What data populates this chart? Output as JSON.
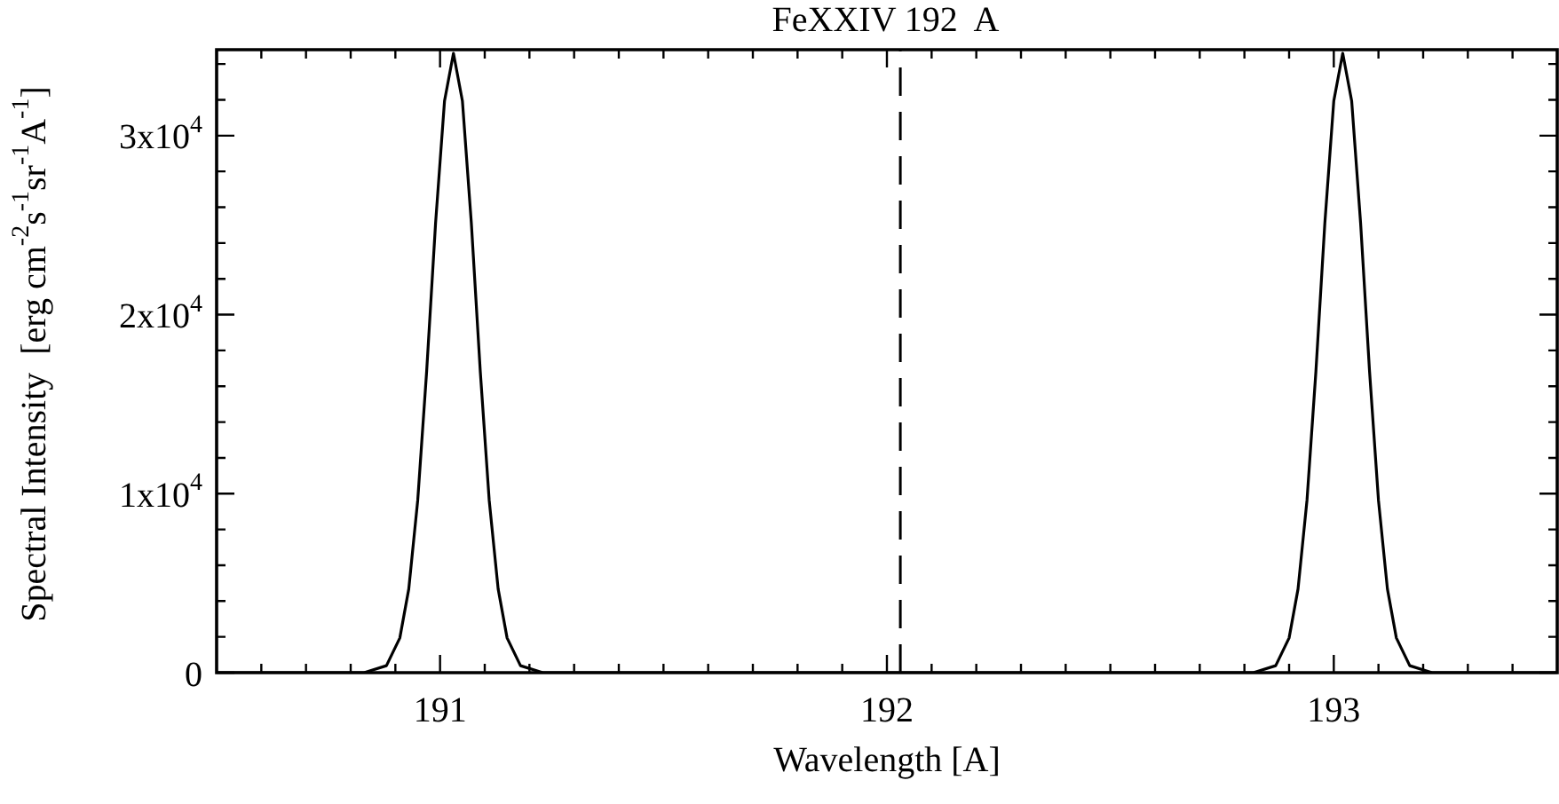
{
  "chart_data": {
    "type": "line",
    "title": "FeXXIV 192  A",
    "xlabel": "Wavelength [A]",
    "ylabel": "Spectral Intensity  [erg cm$^{-2}$s$^{-1}$sr$^{-1}$A$^{-1}$]",
    "x": [
      190.5,
      190.83,
      190.88,
      190.91,
      190.93,
      190.95,
      190.97,
      190.99,
      191.01,
      191.03,
      191.05,
      191.07,
      191.09,
      191.11,
      191.13,
      191.15,
      191.18,
      191.23,
      192.82,
      192.87,
      192.9,
      192.92,
      192.94,
      192.96,
      192.98,
      193.0,
      193.02,
      193.04,
      193.06,
      193.08,
      193.1,
      193.12,
      193.14,
      193.17,
      193.22,
      193.5
    ],
    "series": [
      {
        "color": "#000000",
        "values": [
          0,
          0,
          390,
          1940,
          4680,
          9620,
          16840,
          25120,
          31940,
          34600,
          31940,
          25120,
          16840,
          9620,
          4680,
          1940,
          390,
          0,
          0,
          390,
          1940,
          4680,
          9620,
          16840,
          25120,
          31940,
          34600,
          31940,
          25120,
          16840,
          9620,
          4680,
          1940,
          390,
          0,
          0
        ]
      }
    ],
    "xlim": [
      190.5,
      193.5
    ],
    "xticks": [
      {
        "value": 190.6,
        "label": null
      },
      {
        "value": 190.7,
        "label": null
      },
      {
        "value": 190.8,
        "label": null
      },
      {
        "value": 190.9,
        "label": null
      },
      191,
      {
        "value": 191.1,
        "label": null
      },
      {
        "value": 191.2,
        "label": null
      },
      {
        "value": 191.3,
        "label": null
      },
      {
        "value": 191.4,
        "label": null
      },
      {
        "value": 191.5,
        "label": null
      },
      {
        "value": 191.6,
        "label": null
      },
      {
        "value": 191.7,
        "label": null
      },
      {
        "value": 191.8,
        "label": null
      },
      {
        "value": 191.9,
        "label": null
      },
      192,
      {
        "value": 192.1,
        "label": null
      },
      {
        "value": 192.2,
        "label": null
      },
      {
        "value": 192.3,
        "label": null
      },
      {
        "value": 192.4,
        "label": null
      },
      {
        "value": 192.5,
        "label": null
      },
      {
        "value": 192.6,
        "label": null
      },
      {
        "value": 192.7,
        "label": null
      },
      {
        "value": 192.8,
        "label": null
      },
      {
        "value": 192.9,
        "label": null
      },
      193,
      {
        "value": 193.1,
        "label": null
      },
      {
        "value": 193.2,
        "label": null
      },
      {
        "value": 193.3,
        "label": null
      },
      {
        "value": 193.4,
        "label": null
      }
    ],
    "ylim": [
      0,
      34800
    ],
    "yticks": [
      0,
      {
        "value": 2000,
        "label": null
      },
      {
        "value": 4000,
        "label": null
      },
      {
        "value": 6000,
        "label": null
      },
      {
        "value": 8000,
        "label": null
      },
      {
        "value": 10000,
        "label": "1x10$^{4}$"
      },
      {
        "value": 12000,
        "label": null
      },
      {
        "value": 14000,
        "label": null
      },
      {
        "value": 16000,
        "label": null
      },
      {
        "value": 18000,
        "label": null
      },
      {
        "value": 20000,
        "label": "2x10$^{4}$"
      },
      {
        "value": 22000,
        "label": null
      },
      {
        "value": 24000,
        "label": null
      },
      {
        "value": 26000,
        "label": null
      },
      {
        "value": 28000,
        "label": null
      },
      {
        "value": 30000,
        "label": "3x10$^{4}$"
      },
      {
        "value": 32000,
        "label": null
      },
      {
        "value": 34000,
        "label": null
      }
    ],
    "ref_lines": [
      {
        "axis": "x",
        "value": 192.03,
        "color": "#000000",
        "line_style": "dashed"
      }
    ],
    "marker": "none",
    "line_style": "solid",
    "grid": false,
    "legend": false
  }
}
